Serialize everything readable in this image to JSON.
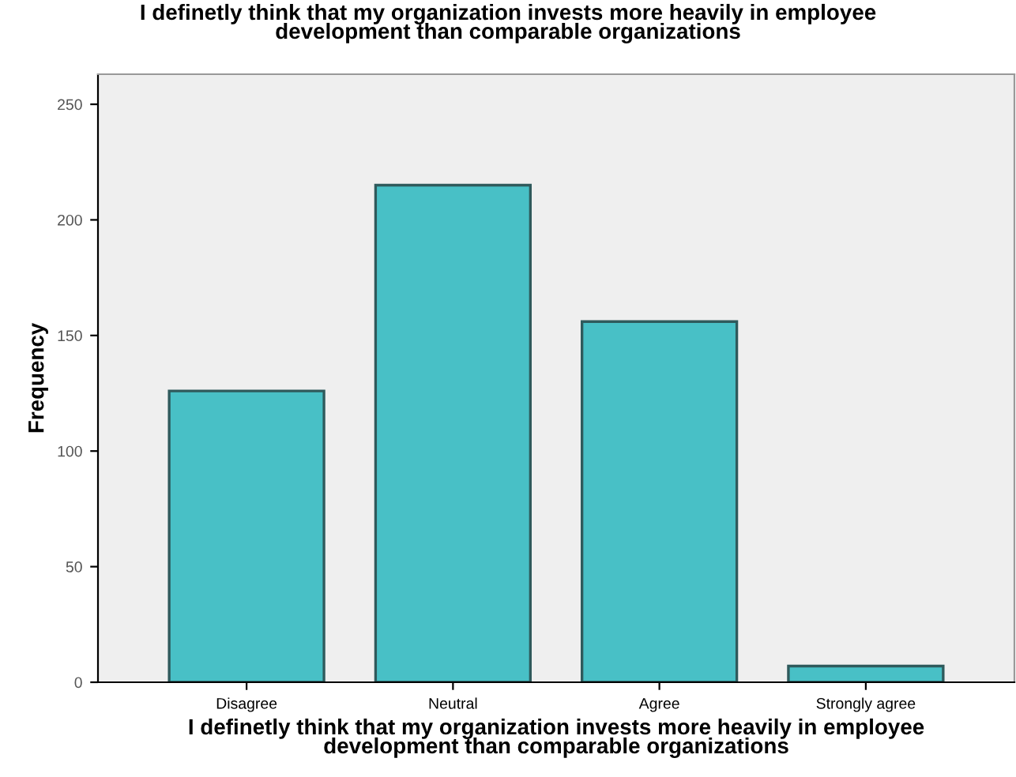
{
  "chart_data": {
    "type": "bar",
    "title": "I definetly think that my organization invests more heavily in employee\ndevelopment than comparable organizations",
    "xlabel": "I definetly think that my organization invests more heavily in employee\ndevelopment than comparable organizations",
    "ylabel": "Frequency",
    "categories": [
      "Disagree",
      "Neutral",
      "Agree",
      "Strongly agree"
    ],
    "values": [
      126,
      215,
      156,
      7
    ],
    "color": "#48c0c6",
    "ylim": [
      0,
      263
    ],
    "yticks": [
      0,
      50,
      100,
      150,
      200,
      250
    ],
    "grid": false,
    "legend": false
  }
}
